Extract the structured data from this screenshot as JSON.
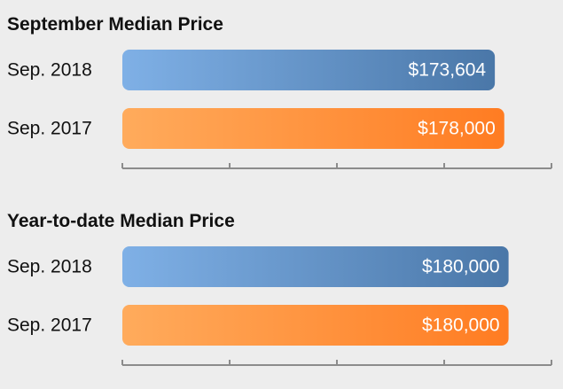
{
  "chart_data": [
    {
      "type": "bar",
      "orientation": "horizontal",
      "title": "September Median Price",
      "categories": [
        "Sep. 2018",
        "Sep. 2017"
      ],
      "values": [
        173604,
        178000
      ],
      "value_labels": [
        "$173,604",
        "$178,000"
      ],
      "xlim": [
        0,
        200000
      ],
      "tick_count": 5,
      "grid": false,
      "legend": "none"
    },
    {
      "type": "bar",
      "orientation": "horizontal",
      "title": "Year-to-date Median Price",
      "categories": [
        "Sep. 2018",
        "Sep. 2017"
      ],
      "values": [
        180000,
        180000
      ],
      "value_labels": [
        "$180,000",
        "$180,000"
      ],
      "xlim": [
        0,
        200000
      ],
      "tick_count": 5,
      "grid": false,
      "legend": "none"
    }
  ],
  "colors": {
    "background": "#ededed",
    "sep_2018_start": "#7fb0e6",
    "sep_2018_end": "#4a77a8",
    "sep_2017_start": "#ffab5c",
    "sep_2017_end": "#ff7c22",
    "axis": "#8c8c8c"
  }
}
